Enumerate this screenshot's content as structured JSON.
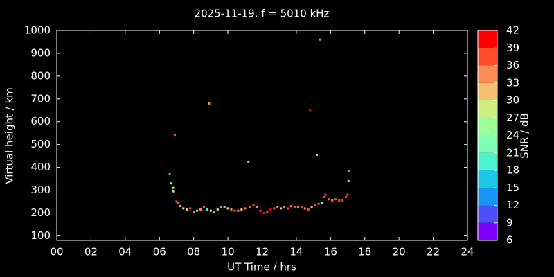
{
  "chart_data": {
    "type": "scatter",
    "title": "2025-11-19. f = 5010 kHz",
    "x_label": "UT Time / hrs",
    "y_label": "Virtual height / km",
    "xlim": [
      0,
      24
    ],
    "xticks": [
      {
        "value": 0,
        "label": "00"
      },
      {
        "value": 2,
        "label": "02"
      },
      {
        "value": 4,
        "label": "04"
      },
      {
        "value": 6,
        "label": "06"
      },
      {
        "value": 8,
        "label": "08"
      },
      {
        "value": 10,
        "label": "10"
      },
      {
        "value": 12,
        "label": "12"
      },
      {
        "value": 14,
        "label": "14"
      },
      {
        "value": 16,
        "label": "16"
      },
      {
        "value": 18,
        "label": "18"
      },
      {
        "value": 20,
        "label": "20"
      },
      {
        "value": 22,
        "label": "22"
      },
      {
        "value": 24,
        "label": "24"
      }
    ],
    "ylim": [
      80,
      1000
    ],
    "yticks": [
      100,
      200,
      300,
      400,
      500,
      600,
      700,
      800,
      900,
      1000
    ],
    "x": [
      6.6,
      6.7,
      6.8,
      6.8,
      6.9,
      7.0,
      7.1,
      7.2,
      7.4,
      7.6,
      7.8,
      8.0,
      8.2,
      8.4,
      8.6,
      8.8,
      8.9,
      9.0,
      9.2,
      9.4,
      9.6,
      9.8,
      10.0,
      10.2,
      10.4,
      10.6,
      10.8,
      11.0,
      11.2,
      11.3,
      11.5,
      11.7,
      11.9,
      12.1,
      12.3,
      12.5,
      12.7,
      12.9,
      13.1,
      13.3,
      13.5,
      13.7,
      13.9,
      14.1,
      14.3,
      14.5,
      14.7,
      14.8,
      14.9,
      15.1,
      15.2,
      15.3,
      15.4,
      15.5,
      15.6,
      15.7,
      15.9,
      16.1,
      16.3,
      16.5,
      16.7,
      16.9,
      17.0,
      17.05,
      17.1
    ],
    "values": [
      370,
      330,
      310,
      295,
      540,
      250,
      245,
      230,
      220,
      215,
      220,
      205,
      210,
      215,
      225,
      215,
      680,
      210,
      205,
      215,
      225,
      225,
      220,
      215,
      210,
      210,
      215,
      220,
      425,
      225,
      235,
      225,
      210,
      200,
      205,
      215,
      220,
      225,
      220,
      225,
      220,
      230,
      225,
      225,
      225,
      220,
      215,
      650,
      225,
      235,
      455,
      240,
      960,
      245,
      270,
      280,
      260,
      255,
      260,
      255,
      255,
      270,
      280,
      340,
      385
    ],
    "snr": [
      17,
      27,
      24,
      27,
      37,
      36,
      36,
      30,
      27,
      30,
      36,
      33,
      30,
      33,
      36,
      20,
      33,
      30,
      33,
      27,
      33,
      30,
      27,
      33,
      36,
      33,
      30,
      33,
      30,
      36,
      36,
      33,
      36,
      39,
      36,
      39,
      36,
      33,
      30,
      33,
      36,
      33,
      36,
      33,
      36,
      33,
      36,
      42,
      30,
      36,
      30,
      36,
      33,
      24,
      36,
      36,
      36,
      33,
      36,
      36,
      36,
      36,
      36,
      30,
      17
    ],
    "colorbar": {
      "label": "SNR / dB",
      "lim": [
        6,
        42
      ],
      "ticks": [
        6,
        9,
        12,
        15,
        18,
        21,
        24,
        27,
        30,
        33,
        36,
        39,
        42
      ],
      "colors": [
        "#8000ff",
        "#4d4dfc",
        "#1996f3",
        "#1ac7e6",
        "#4df3ce",
        "#80ffb4",
        "#9aff99",
        "#ccee80",
        "#f5c070",
        "#ff8c56",
        "#ff4d2a",
        "#ff0000"
      ]
    }
  }
}
